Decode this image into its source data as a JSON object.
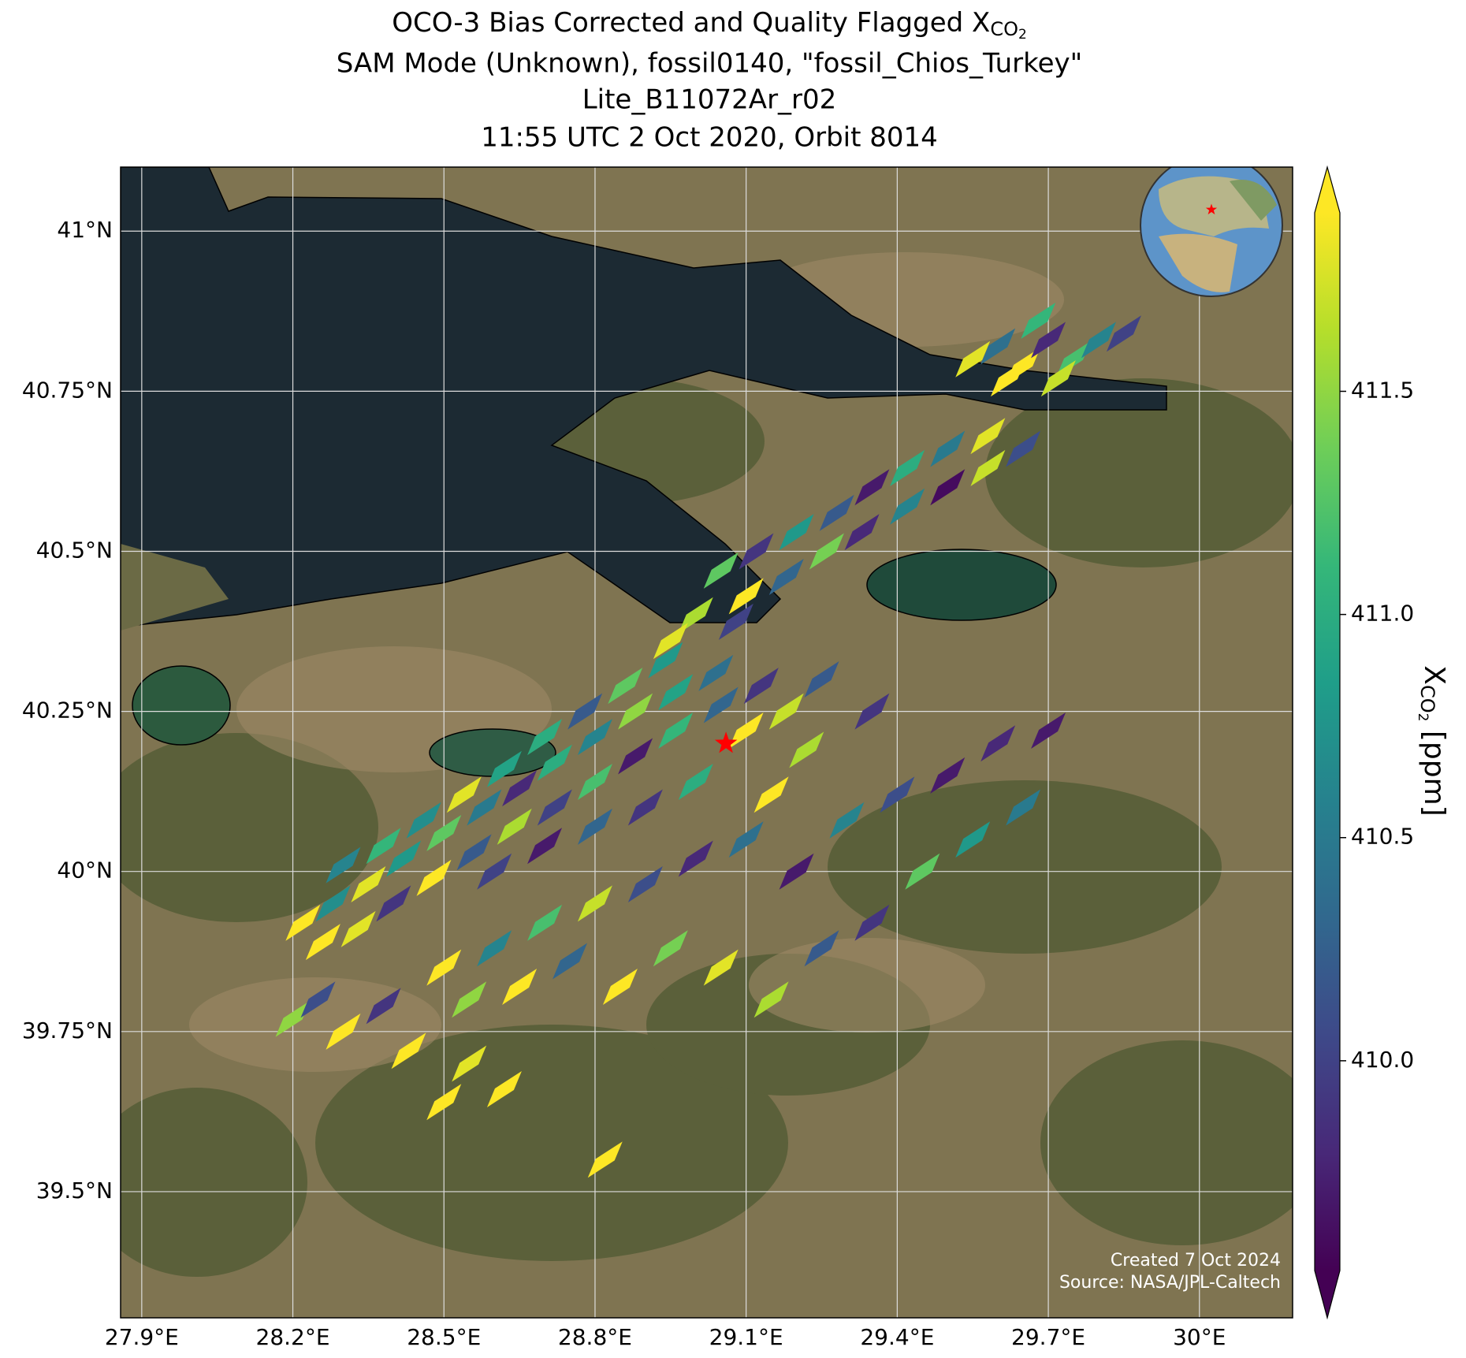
{
  "chart_data": {
    "type": "map",
    "title": {
      "line1": {
        "text": "OCO-3 Bias Corrected and Quality Flagged X",
        "sub": "CO",
        "subsub": "2"
      },
      "line2": "SAM Mode (Unknown), fossil0140, \"fossil_Chios_Turkey\"",
      "line3": "Lite_B11072Ar_r02",
      "line4": "11:55 UTC 2 Oct 2020, Orbit 8014"
    },
    "xlim": [
      27.858,
      30.185
    ],
    "ylim": [
      39.303,
      41.1
    ],
    "xticks": [
      {
        "value": 27.9,
        "label": "27.9°E"
      },
      {
        "value": 28.2,
        "label": "28.2°E"
      },
      {
        "value": 28.5,
        "label": "28.5°E"
      },
      {
        "value": 28.8,
        "label": "28.8°E"
      },
      {
        "value": 29.1,
        "label": "29.1°E"
      },
      {
        "value": 29.4,
        "label": "29.4°E"
      },
      {
        "value": 29.7,
        "label": "29.7°E"
      },
      {
        "value": 30.0,
        "label": "30°E"
      }
    ],
    "yticks": [
      {
        "value": 41,
        "label": "41°N"
      },
      {
        "value": 40.75,
        "label": "40.75°N"
      },
      {
        "value": 40.5,
        "label": "40.5°N"
      },
      {
        "value": 40.25,
        "label": "40.25°N"
      },
      {
        "value": 40,
        "label": "40°N"
      },
      {
        "value": 39.75,
        "label": "39.75°N"
      },
      {
        "value": 39.5,
        "label": "39.5°N"
      }
    ],
    "grid": true,
    "colorbar": {
      "label": {
        "text": "X",
        "sub": "CO",
        "subsub": "2",
        "unit": " [ppm]"
      },
      "lim": [
        409.53,
        411.9
      ],
      "ticks": [
        {
          "value": 410,
          "label": "410.0"
        },
        410.5,
        {
          "value": 411,
          "label": "411.0"
        },
        411.5
      ],
      "colormap": "viridis",
      "extend": "both"
    },
    "site": {
      "lon": 29.06,
      "lat": 40.2,
      "color": "#ff0000"
    },
    "credits": [
      "Created 7 Oct 2024",
      "Source: NASA/JPL-Caltech"
    ],
    "footprints": [
      [
        29.55,
        40.8,
        411.8
      ],
      [
        29.6,
        40.82,
        410.4
      ],
      [
        29.65,
        40.79,
        411.9
      ],
      [
        29.7,
        40.83,
        409.8
      ],
      [
        29.75,
        40.8,
        411.2
      ],
      [
        29.8,
        40.83,
        410.6
      ],
      [
        29.62,
        40.77,
        411.9
      ],
      [
        29.72,
        40.77,
        411.7
      ],
      [
        29.85,
        40.84,
        410.0
      ],
      [
        29.68,
        40.86,
        411.1
      ],
      [
        29.05,
        40.47,
        411.3
      ],
      [
        29.12,
        40.5,
        409.9
      ],
      [
        29.2,
        40.53,
        410.8
      ],
      [
        29.28,
        40.56,
        410.2
      ],
      [
        29.35,
        40.6,
        409.7
      ],
      [
        29.42,
        40.63,
        411.0
      ],
      [
        29.5,
        40.66,
        410.5
      ],
      [
        29.58,
        40.68,
        411.8
      ],
      [
        29.65,
        40.66,
        410.1
      ],
      [
        29.1,
        40.43,
        411.9
      ],
      [
        29.18,
        40.46,
        410.3
      ],
      [
        29.26,
        40.5,
        411.4
      ],
      [
        29.33,
        40.53,
        409.8
      ],
      [
        29.42,
        40.57,
        410.6
      ],
      [
        29.5,
        40.6,
        409.6
      ],
      [
        29.58,
        40.63,
        411.7
      ],
      [
        29.0,
        40.4,
        411.6
      ],
      [
        28.95,
        40.36,
        411.8
      ],
      [
        29.08,
        40.39,
        410.0
      ],
      [
        28.22,
        39.92,
        411.9
      ],
      [
        28.28,
        39.95,
        410.7
      ],
      [
        28.35,
        39.98,
        411.8
      ],
      [
        28.42,
        40.02,
        410.8
      ],
      [
        28.5,
        40.06,
        411.3
      ],
      [
        28.58,
        40.1,
        410.5
      ],
      [
        28.65,
        40.13,
        409.8
      ],
      [
        28.72,
        40.17,
        411.0
      ],
      [
        28.8,
        40.21,
        410.6
      ],
      [
        28.88,
        40.25,
        411.5
      ],
      [
        28.96,
        40.28,
        410.9
      ],
      [
        29.04,
        40.31,
        410.4
      ],
      [
        28.26,
        39.89,
        411.9
      ],
      [
        28.33,
        39.91,
        411.8
      ],
      [
        28.4,
        39.95,
        409.9
      ],
      [
        28.48,
        39.99,
        411.9
      ],
      [
        28.56,
        40.03,
        410.2
      ],
      [
        28.64,
        40.07,
        411.6
      ],
      [
        28.72,
        40.1,
        410.0
      ],
      [
        28.8,
        40.14,
        411.2
      ],
      [
        28.88,
        40.18,
        409.7
      ],
      [
        28.96,
        40.22,
        411.1
      ],
      [
        29.05,
        40.26,
        410.3
      ],
      [
        29.13,
        40.29,
        409.9
      ],
      [
        28.3,
        40.01,
        410.6
      ],
      [
        28.38,
        40.04,
        411.1
      ],
      [
        28.46,
        40.08,
        410.7
      ],
      [
        28.54,
        40.12,
        411.8
      ],
      [
        28.62,
        40.16,
        410.9
      ],
      [
        28.7,
        40.21,
        411.0
      ],
      [
        28.78,
        40.25,
        410.2
      ],
      [
        28.86,
        40.29,
        411.3
      ],
      [
        28.94,
        40.33,
        410.8
      ],
      [
        29.1,
        40.22,
        411.9
      ],
      [
        29.18,
        40.25,
        411.7
      ],
      [
        29.22,
        40.19,
        411.6
      ],
      [
        28.5,
        39.85,
        411.9
      ],
      [
        28.55,
        39.8,
        411.5
      ],
      [
        28.6,
        39.88,
        410.6
      ],
      [
        28.65,
        39.82,
        411.9
      ],
      [
        28.7,
        39.92,
        411.2
      ],
      [
        28.75,
        39.86,
        410.3
      ],
      [
        28.8,
        39.95,
        411.7
      ],
      [
        28.85,
        39.82,
        411.9
      ],
      [
        28.9,
        39.98,
        410.1
      ],
      [
        28.95,
        39.88,
        411.4
      ],
      [
        29.0,
        40.02,
        409.8
      ],
      [
        29.05,
        39.85,
        411.8
      ],
      [
        29.1,
        40.05,
        410.4
      ],
      [
        29.15,
        39.8,
        411.6
      ],
      [
        29.2,
        40.0,
        409.7
      ],
      [
        29.25,
        39.88,
        410.2
      ],
      [
        29.3,
        40.08,
        410.6
      ],
      [
        29.35,
        39.92,
        409.9
      ],
      [
        29.4,
        40.12,
        410.1
      ],
      [
        29.45,
        40.0,
        411.3
      ],
      [
        29.5,
        40.15,
        409.7
      ],
      [
        29.55,
        40.05,
        410.8
      ],
      [
        29.6,
        40.2,
        409.8
      ],
      [
        29.65,
        40.1,
        410.5
      ],
      [
        29.7,
        40.22,
        409.7
      ],
      [
        29.35,
        40.25,
        409.9
      ],
      [
        29.25,
        40.3,
        410.2
      ],
      [
        28.6,
        40.0,
        410.0
      ],
      [
        28.7,
        40.04,
        409.7
      ],
      [
        28.8,
        40.07,
        410.3
      ],
      [
        28.9,
        40.1,
        409.9
      ],
      [
        29.0,
        40.14,
        411.0
      ],
      [
        29.15,
        40.12,
        411.9
      ],
      [
        28.2,
        39.77,
        411.5
      ],
      [
        28.3,
        39.75,
        411.9
      ],
      [
        28.43,
        39.72,
        411.9
      ],
      [
        28.55,
        39.7,
        411.8
      ],
      [
        28.62,
        39.66,
        411.9
      ],
      [
        28.82,
        39.55,
        411.9
      ],
      [
        28.5,
        39.64,
        411.9
      ],
      [
        28.25,
        39.8,
        410.1
      ],
      [
        28.38,
        39.79,
        409.9
      ]
    ]
  }
}
